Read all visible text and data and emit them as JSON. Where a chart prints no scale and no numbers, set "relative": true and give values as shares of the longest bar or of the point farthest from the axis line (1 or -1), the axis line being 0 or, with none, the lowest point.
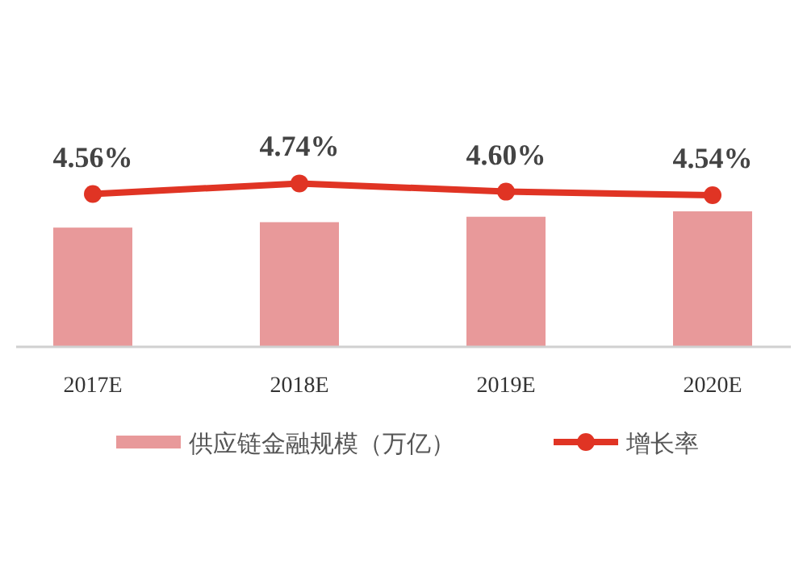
{
  "chart_data": [
    {
      "type": "bar",
      "relative": true,
      "categories": [
        "2017E",
        "2018E",
        "2019E",
        "2020E"
      ],
      "series": [
        {
          "name": "供应链金融规模（万亿）",
          "color": "#e8999a",
          "values": [
            0.88,
            0.92,
            0.96,
            1
          ]
        }
      ],
      "legend": "bottom"
    },
    {
      "type": "line",
      "categories": [
        "2017E",
        "2018E",
        "2019E",
        "2020E"
      ],
      "series": [
        {
          "name": "增长率",
          "color": "#e03424",
          "values": [
            4.56,
            4.74,
            4.6,
            4.54
          ],
          "value_labels": [
            "4.56%",
            "4.74%",
            "4.60%",
            "4.54%"
          ]
        }
      ],
      "marker": "circle",
      "legend": "bottom",
      "tick_labels": false
    }
  ]
}
